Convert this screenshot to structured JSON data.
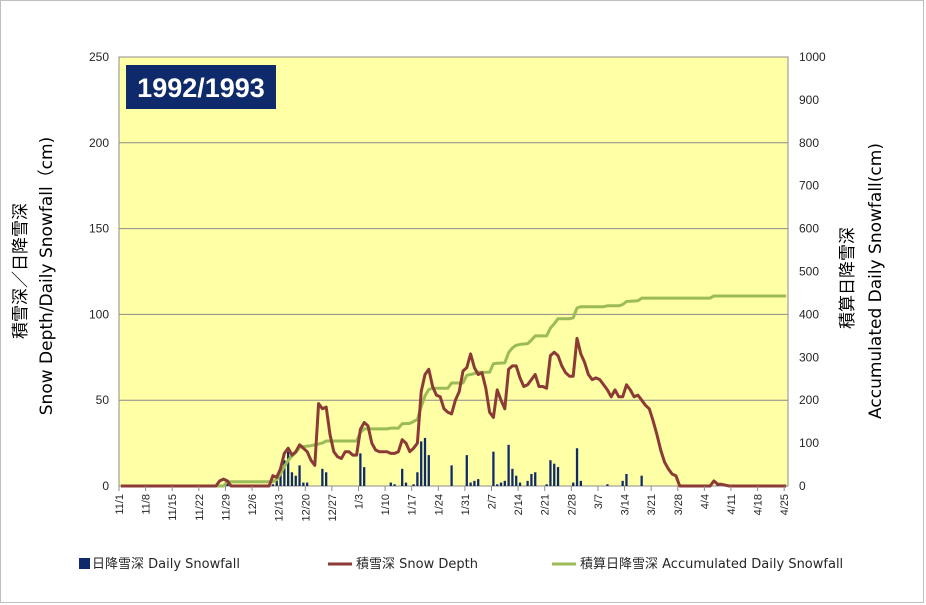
{
  "chart_data": {
    "type": "bar+line",
    "title": "1992/1993",
    "y_left": {
      "label_line1": "積雪深／日降雪深",
      "label_line2": "Snow Depth/Daily Snowfall（cm)",
      "min": 0,
      "max": 250,
      "ticks": [
        "0",
        "50",
        "100",
        "150",
        "200",
        "250"
      ]
    },
    "y_right": {
      "label_line1": "積算日降雪深",
      "label_line2": "Accumulated Daily Snowfall(cm)",
      "min": 0,
      "max": 1000,
      "ticks": [
        "0",
        "100",
        "200",
        "300",
        "400",
        "500",
        "600",
        "700",
        "800",
        "900",
        "1000"
      ]
    },
    "x": {
      "start": "11/1",
      "days": 176,
      "tick_labels": [
        "11/1",
        "11/8",
        "11/15",
        "11/22",
        "11/29",
        "12/6",
        "12/13",
        "12/20",
        "12/27",
        "1/3",
        "1/10",
        "1/17",
        "1/24",
        "1/31",
        "2/7",
        "2/14",
        "2/21",
        "2/28",
        "3/7",
        "3/14",
        "3/21",
        "3/28",
        "4/4",
        "4/11",
        "4/18",
        "4/25"
      ]
    },
    "grid": true,
    "legend_position": "bottom",
    "series": [
      {
        "name": "日降雪深 Daily Snowfall",
        "kind": "bar",
        "axis": "left",
        "color": "#0f2a6b",
        "points": [
          [
            28,
            2
          ],
          [
            40,
            1
          ],
          [
            41,
            3
          ],
          [
            42,
            10
          ],
          [
            43,
            15
          ],
          [
            44,
            20
          ],
          [
            45,
            8
          ],
          [
            46,
            6
          ],
          [
            47,
            12
          ],
          [
            48,
            2
          ],
          [
            49,
            2
          ],
          [
            53,
            10
          ],
          [
            54,
            8
          ],
          [
            63,
            19
          ],
          [
            64,
            11
          ],
          [
            71,
            2
          ],
          [
            72,
            1
          ],
          [
            74,
            10
          ],
          [
            75,
            2
          ],
          [
            77,
            1
          ],
          [
            78,
            8
          ],
          [
            79,
            26
          ],
          [
            80,
            28
          ],
          [
            81,
            18
          ],
          [
            87,
            12
          ],
          [
            91,
            18
          ],
          [
            92,
            2
          ],
          [
            93,
            3
          ],
          [
            94,
            4
          ],
          [
            98,
            20
          ],
          [
            99,
            1
          ],
          [
            100,
            2
          ],
          [
            101,
            3
          ],
          [
            102,
            24
          ],
          [
            103,
            10
          ],
          [
            104,
            6
          ],
          [
            105,
            2
          ],
          [
            107,
            3
          ],
          [
            108,
            7
          ],
          [
            109,
            8
          ],
          [
            112,
            1
          ],
          [
            113,
            15
          ],
          [
            114,
            13
          ],
          [
            115,
            11
          ],
          [
            119,
            2
          ],
          [
            120,
            22
          ],
          [
            121,
            3
          ],
          [
            128,
            1
          ],
          [
            132,
            3
          ],
          [
            133,
            7
          ],
          [
            137,
            6
          ],
          [
            157,
            1
          ]
        ]
      },
      {
        "name": "積雪深 Snow Depth",
        "kind": "line",
        "axis": "left",
        "color": "#8c3a36",
        "points": [
          [
            0,
            0
          ],
          [
            25,
            0
          ],
          [
            26,
            3
          ],
          [
            27,
            4
          ],
          [
            28,
            3
          ],
          [
            29,
            0
          ],
          [
            39,
            0
          ],
          [
            40,
            6
          ],
          [
            41,
            5
          ],
          [
            42,
            10
          ],
          [
            43,
            19
          ],
          [
            44,
            22
          ],
          [
            45,
            18
          ],
          [
            46,
            20
          ],
          [
            47,
            24
          ],
          [
            48,
            22
          ],
          [
            49,
            20
          ],
          [
            50,
            15
          ],
          [
            51,
            12
          ],
          [
            52,
            48
          ],
          [
            53,
            45
          ],
          [
            54,
            46
          ],
          [
            55,
            30
          ],
          [
            56,
            20
          ],
          [
            57,
            17
          ],
          [
            58,
            16
          ],
          [
            59,
            20
          ],
          [
            60,
            20
          ],
          [
            61,
            18
          ],
          [
            62,
            18
          ],
          [
            63,
            33
          ],
          [
            64,
            37
          ],
          [
            65,
            35
          ],
          [
            66,
            25
          ],
          [
            67,
            21
          ],
          [
            68,
            20
          ],
          [
            69,
            20
          ],
          [
            70,
            20
          ],
          [
            71,
            19
          ],
          [
            72,
            19
          ],
          [
            73,
            20
          ],
          [
            74,
            27
          ],
          [
            75,
            25
          ],
          [
            76,
            20
          ],
          [
            77,
            22
          ],
          [
            78,
            25
          ],
          [
            79,
            55
          ],
          [
            80,
            65
          ],
          [
            81,
            68
          ],
          [
            82,
            58
          ],
          [
            83,
            53
          ],
          [
            84,
            52
          ],
          [
            85,
            45
          ],
          [
            86,
            43
          ],
          [
            87,
            42
          ],
          [
            88,
            50
          ],
          [
            89,
            55
          ],
          [
            90,
            67
          ],
          [
            91,
            69
          ],
          [
            92,
            77
          ],
          [
            93,
            69
          ],
          [
            94,
            65
          ],
          [
            95,
            66
          ],
          [
            96,
            57
          ],
          [
            97,
            43
          ],
          [
            98,
            40
          ],
          [
            99,
            56
          ],
          [
            100,
            50
          ],
          [
            101,
            45
          ],
          [
            102,
            68
          ],
          [
            103,
            70
          ],
          [
            104,
            70
          ],
          [
            105,
            63
          ],
          [
            106,
            58
          ],
          [
            107,
            59
          ],
          [
            108,
            62
          ],
          [
            109,
            65
          ],
          [
            110,
            58
          ],
          [
            111,
            58
          ],
          [
            112,
            57
          ],
          [
            113,
            76
          ],
          [
            114,
            78
          ],
          [
            115,
            76
          ],
          [
            116,
            70
          ],
          [
            117,
            66
          ],
          [
            118,
            64
          ],
          [
            119,
            64
          ],
          [
            120,
            86
          ],
          [
            121,
            77
          ],
          [
            122,
            72
          ],
          [
            123,
            65
          ],
          [
            124,
            62
          ],
          [
            125,
            63
          ],
          [
            126,
            62
          ],
          [
            127,
            59
          ],
          [
            128,
            56
          ],
          [
            129,
            52
          ],
          [
            130,
            56
          ],
          [
            131,
            52
          ],
          [
            132,
            52
          ],
          [
            133,
            59
          ],
          [
            134,
            56
          ],
          [
            135,
            52
          ],
          [
            136,
            53
          ],
          [
            137,
            50
          ],
          [
            138,
            47
          ],
          [
            139,
            45
          ],
          [
            140,
            38
          ],
          [
            141,
            30
          ],
          [
            142,
            21
          ],
          [
            143,
            14
          ],
          [
            144,
            10
          ],
          [
            145,
            7
          ],
          [
            146,
            6
          ],
          [
            147,
            0
          ],
          [
            155,
            0
          ],
          [
            156,
            3
          ],
          [
            157,
            1
          ],
          [
            158,
            1
          ],
          [
            160,
            0
          ],
          [
            175,
            0
          ]
        ]
      },
      {
        "name": "積算日降雪深 Accumulated Daily Snowfall",
        "kind": "line",
        "axis": "right",
        "color": "#9bbb59",
        "points": [
          [
            0,
            0
          ],
          [
            27,
            0
          ],
          [
            28,
            10
          ],
          [
            40,
            10
          ],
          [
            41,
            15
          ],
          [
            42,
            28
          ],
          [
            43,
            45
          ],
          [
            44,
            60
          ],
          [
            45,
            70
          ],
          [
            46,
            78
          ],
          [
            47,
            90
          ],
          [
            48,
            92
          ],
          [
            50,
            94
          ],
          [
            53,
            100
          ],
          [
            54,
            105
          ],
          [
            62,
            105
          ],
          [
            63,
            125
          ],
          [
            64,
            133
          ],
          [
            70,
            133
          ],
          [
            71,
            135
          ],
          [
            73,
            135
          ],
          [
            74,
            145
          ],
          [
            76,
            146
          ],
          [
            78,
            155
          ],
          [
            79,
            185
          ],
          [
            80,
            210
          ],
          [
            81,
            225
          ],
          [
            82,
            228
          ],
          [
            86,
            228
          ],
          [
            87,
            240
          ],
          [
            90,
            240
          ],
          [
            91,
            258
          ],
          [
            92,
            260
          ],
          [
            93,
            262
          ],
          [
            94,
            265
          ],
          [
            97,
            265
          ],
          [
            98,
            285
          ],
          [
            99,
            286
          ],
          [
            101,
            287
          ],
          [
            102,
            311
          ],
          [
            103,
            322
          ],
          [
            104,
            328
          ],
          [
            105,
            330
          ],
          [
            107,
            332
          ],
          [
            108,
            340
          ],
          [
            109,
            350
          ],
          [
            112,
            350
          ],
          [
            113,
            368
          ],
          [
            114,
            378
          ],
          [
            115,
            390
          ],
          [
            118,
            390
          ],
          [
            119,
            392
          ],
          [
            120,
            415
          ],
          [
            121,
            418
          ],
          [
            127,
            418
          ],
          [
            128,
            420
          ],
          [
            131,
            420
          ],
          [
            132,
            423
          ],
          [
            133,
            430
          ],
          [
            136,
            432
          ],
          [
            137,
            438
          ],
          [
            155,
            438
          ],
          [
            156,
            443
          ],
          [
            175,
            443
          ]
        ]
      }
    ]
  }
}
